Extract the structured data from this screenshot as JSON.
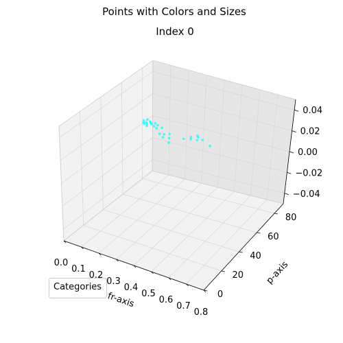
{
  "chart_data": {
    "type": "scatter",
    "suptitle": "Points with Colors and Sizes",
    "title": "Index 0",
    "xlabel": "fr-axis",
    "ylabel": "p-axis",
    "zlabel": "",
    "xlim": [
      0.0,
      0.8
    ],
    "ylim": [
      0,
      90
    ],
    "zlim": [
      -0.05,
      0.05
    ],
    "x_ticks": [
      "0.0",
      "0.1",
      "0.2",
      "0.3",
      "0.4",
      "0.5",
      "0.6",
      "0.7",
      "0.8"
    ],
    "y_ticks": [
      "0",
      "20",
      "40",
      "60",
      "80"
    ],
    "z_ticks": [
      "0.04",
      "0.02",
      "0.00",
      "−0.02",
      "−0.04"
    ],
    "grid": true,
    "legend_title": "Categories",
    "legend_position": "lower-left",
    "point_color": "#00ffff",
    "points": [
      {
        "x": 0.01,
        "y": 82,
        "z": 0
      },
      {
        "x": 0.02,
        "y": 80,
        "z": 0
      },
      {
        "x": 0.02,
        "y": 84,
        "z": 0
      },
      {
        "x": 0.03,
        "y": 81,
        "z": 0
      },
      {
        "x": 0.03,
        "y": 79,
        "z": 0
      },
      {
        "x": 0.04,
        "y": 83,
        "z": 0
      },
      {
        "x": 0.04,
        "y": 80,
        "z": 0
      },
      {
        "x": 0.05,
        "y": 82,
        "z": 0
      },
      {
        "x": 0.05,
        "y": 78,
        "z": 0
      },
      {
        "x": 0.06,
        "y": 81,
        "z": 0
      },
      {
        "x": 0.07,
        "y": 83,
        "z": 0
      },
      {
        "x": 0.08,
        "y": 80,
        "z": 0
      },
      {
        "x": 0.09,
        "y": 82,
        "z": 0
      },
      {
        "x": 0.1,
        "y": 79,
        "z": 0
      },
      {
        "x": 0.12,
        "y": 81,
        "z": 0
      },
      {
        "x": 0.14,
        "y": 75,
        "z": 0
      },
      {
        "x": 0.16,
        "y": 76,
        "z": 0
      },
      {
        "x": 0.17,
        "y": 73,
        "z": 0
      },
      {
        "x": 0.18,
        "y": 78,
        "z": 0
      },
      {
        "x": 0.2,
        "y": 74,
        "z": 0
      },
      {
        "x": 0.22,
        "y": 70,
        "z": 0
      },
      {
        "x": 0.26,
        "y": 78,
        "z": 0
      },
      {
        "x": 0.28,
        "y": 82,
        "z": 0
      },
      {
        "x": 0.29,
        "y": 80,
        "z": 0
      },
      {
        "x": 0.3,
        "y": 85,
        "z": 0
      },
      {
        "x": 0.31,
        "y": 84,
        "z": 0
      },
      {
        "x": 0.32,
        "y": 81,
        "z": 0
      },
      {
        "x": 0.34,
        "y": 83,
        "z": 0
      },
      {
        "x": 0.4,
        "y": 80,
        "z": 0
      }
    ]
  }
}
